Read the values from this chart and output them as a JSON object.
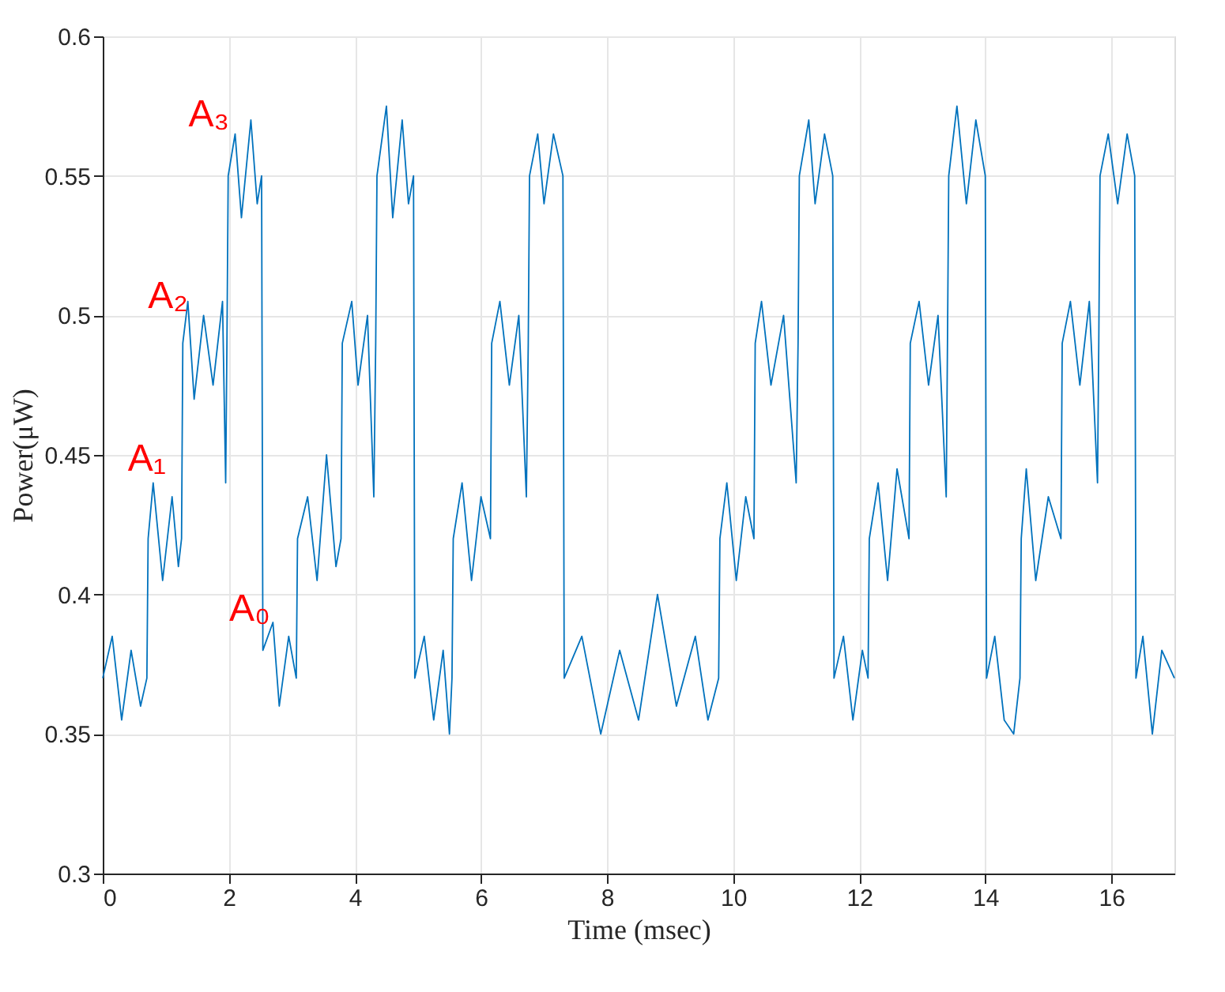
{
  "chart_data": {
    "type": "line",
    "xlabel": "Time (msec)",
    "ylabel": "Power(μW)",
    "x": [
      0,
      0.15,
      0.3,
      0.45,
      0.6,
      0.7,
      0.72,
      0.8,
      0.95,
      1.1,
      1.2,
      1.25,
      1.27,
      1.35,
      1.45,
      1.6,
      1.75,
      1.9,
      1.95,
      1.97,
      1.99,
      2.1,
      2.2,
      2.35,
      2.45,
      2.52,
      2.54,
      2.7,
      2.8,
      2.95,
      3.07,
      3.09,
      3.25,
      3.4,
      3.55,
      3.7,
      3.78,
      3.8,
      3.95,
      4.05,
      4.2,
      4.3,
      4.33,
      4.35,
      4.5,
      4.6,
      4.75,
      4.85,
      4.93,
      4.95,
      5.1,
      5.25,
      5.4,
      5.5,
      5.54,
      5.56,
      5.7,
      5.85,
      6.0,
      6.15,
      6.17,
      6.3,
      6.45,
      6.6,
      6.72,
      6.75,
      6.77,
      6.9,
      7.0,
      7.15,
      7.3,
      7.32,
      7.6,
      7.9,
      8.2,
      8.5,
      8.8,
      9.1,
      9.4,
      9.6,
      9.77,
      9.79,
      9.9,
      10.05,
      10.2,
      10.33,
      10.35,
      10.45,
      10.6,
      10.8,
      11.0,
      11.03,
      11.05,
      11.2,
      11.3,
      11.45,
      11.58,
      11.6,
      11.75,
      11.9,
      12.05,
      12.14,
      12.16,
      12.3,
      12.45,
      12.6,
      12.79,
      12.81,
      12.95,
      13.1,
      13.25,
      13.38,
      13.4,
      13.42,
      13.55,
      13.7,
      13.85,
      14.0,
      14.02,
      14.15,
      14.3,
      14.45,
      14.55,
      14.57,
      14.65,
      14.8,
      15.0,
      15.2,
      15.22,
      15.35,
      15.5,
      15.65,
      15.78,
      15.8,
      15.82,
      15.95,
      16.1,
      16.25,
      16.37,
      16.39,
      16.5,
      16.65,
      16.8,
      17
    ],
    "series": [
      {
        "color": "#0072bd",
        "values": [
          0.37,
          0.385,
          0.355,
          0.38,
          0.36,
          0.37,
          0.42,
          0.44,
          0.405,
          0.435,
          0.41,
          0.42,
          0.49,
          0.505,
          0.47,
          0.5,
          0.475,
          0.505,
          0.44,
          0.49,
          0.55,
          0.565,
          0.535,
          0.57,
          0.54,
          0.55,
          0.38,
          0.39,
          0.36,
          0.385,
          0.37,
          0.42,
          0.435,
          0.405,
          0.45,
          0.41,
          0.42,
          0.49,
          0.505,
          0.475,
          0.5,
          0.435,
          0.49,
          0.55,
          0.575,
          0.535,
          0.57,
          0.54,
          0.55,
          0.37,
          0.385,
          0.355,
          0.38,
          0.35,
          0.37,
          0.42,
          0.44,
          0.405,
          0.435,
          0.42,
          0.49,
          0.505,
          0.475,
          0.5,
          0.435,
          0.49,
          0.55,
          0.565,
          0.54,
          0.565,
          0.55,
          0.37,
          0.385,
          0.35,
          0.38,
          0.355,
          0.4,
          0.36,
          0.385,
          0.355,
          0.37,
          0.42,
          0.44,
          0.405,
          0.435,
          0.42,
          0.49,
          0.505,
          0.475,
          0.5,
          0.44,
          0.49,
          0.55,
          0.57,
          0.54,
          0.565,
          0.55,
          0.37,
          0.385,
          0.355,
          0.38,
          0.37,
          0.42,
          0.44,
          0.405,
          0.445,
          0.42,
          0.49,
          0.505,
          0.475,
          0.5,
          0.435,
          0.49,
          0.55,
          0.575,
          0.54,
          0.57,
          0.55,
          0.37,
          0.385,
          0.355,
          0.35,
          0.37,
          0.42,
          0.445,
          0.405,
          0.435,
          0.42,
          0.49,
          0.505,
          0.475,
          0.505,
          0.44,
          0.49,
          0.55,
          0.565,
          0.54,
          0.565,
          0.55,
          0.37,
          0.385,
          0.35,
          0.38,
          0.37
        ]
      }
    ],
    "xlim": [
      0,
      17
    ],
    "xticks": [
      0,
      2,
      4,
      6,
      8,
      10,
      12,
      14,
      16
    ],
    "ylim": [
      0.3,
      0.6
    ],
    "yticks": [
      0.3,
      0.35,
      0.4,
      0.45,
      0.5,
      0.55,
      0.6
    ],
    "grid": true,
    "line_style": "solid",
    "annotations": [
      "A₃",
      "A₂",
      "A₁",
      "A₀"
    ]
  }
}
